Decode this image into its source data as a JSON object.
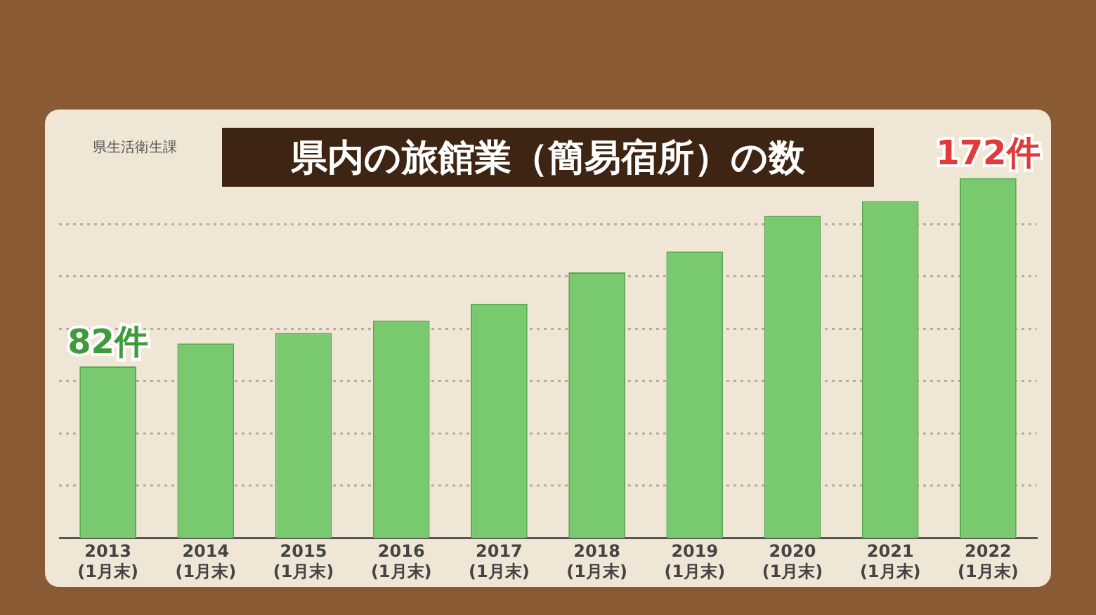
{
  "chart_data": {
    "type": "bar",
    "title": "県内の旅館業（簡易宿所）の数",
    "annotations": [
      "県生活衛生課"
    ],
    "categories": [
      "2013\n(1月末)",
      "2014\n(1月末)",
      "2015\n(1月末)",
      "2016\n(1月末)",
      "2017\n(1月末)",
      "2018\n(1月末)",
      "2019\n(1月末)",
      "2020\n(1月末)",
      "2021\n(1月末)",
      "2022\n(1月末)"
    ],
    "values": [
      82,
      93,
      98,
      104,
      112,
      127,
      137,
      154,
      161,
      172
    ],
    "value_labels": [
      "82件",
      null,
      null,
      null,
      null,
      null,
      null,
      null,
      null,
      "172件"
    ],
    "color": "#79c96f",
    "yticks": [
      {
        "value": 25,
        "label": null
      },
      {
        "value": 50,
        "label": null
      },
      {
        "value": 75,
        "label": null
      },
      {
        "value": 100,
        "label": null
      },
      {
        "value": 125,
        "label": null
      },
      {
        "value": 150,
        "label": null
      }
    ],
    "grid": "y",
    "tick_labels": "x",
    "legend": false
  }
}
